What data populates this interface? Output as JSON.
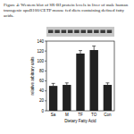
{
  "chart_data": {
    "type": "bar",
    "title": "Figure 4: Western blot of SR-BI protein levels in liver of male human transgenic apoB100/CETP mouse fed diets containing defined fatty acids.",
    "categories": [
      "Sa",
      "M",
      "TF",
      "TO",
      "Con"
    ],
    "values": [
      50,
      52,
      115,
      122,
      52
    ],
    "errors": [
      5,
      4,
      6,
      8,
      4
    ],
    "color": "#222222",
    "x_label": "Dietary Fatty Acid",
    "y_label": "relative arbitrary units",
    "ylim": [
      0,
      140
    ],
    "yticks": [
      0,
      20,
      40,
      60,
      80,
      100,
      120,
      140
    ]
  }
}
